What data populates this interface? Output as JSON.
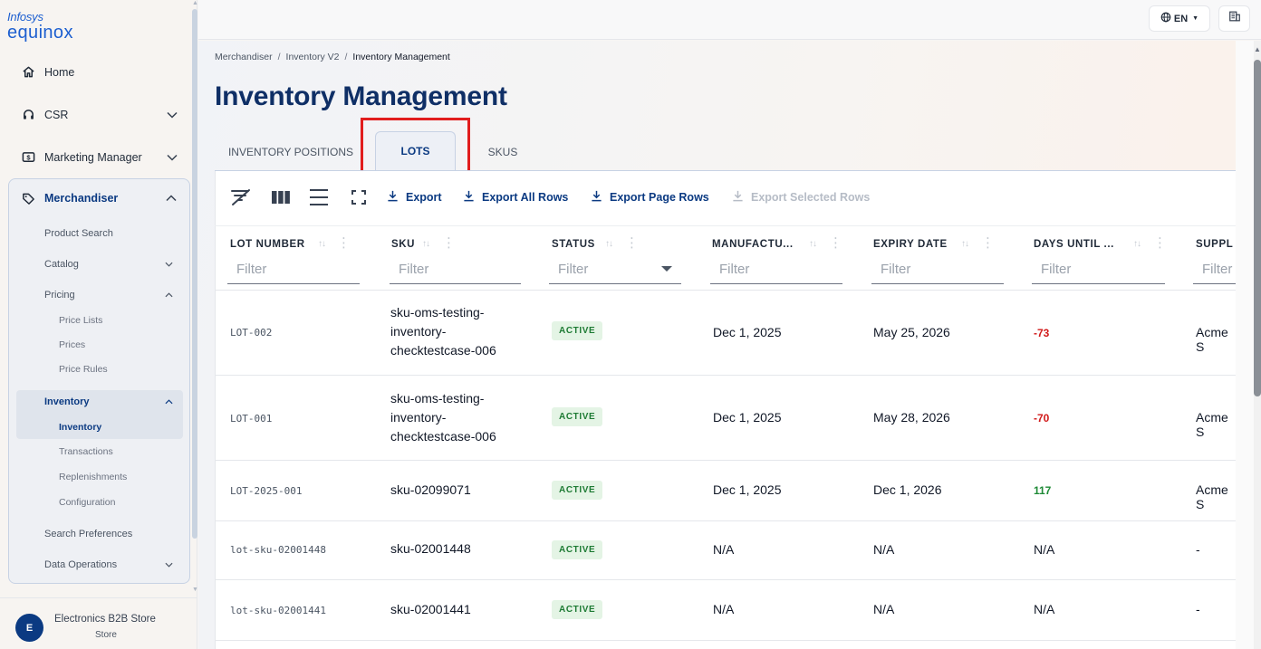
{
  "brand": {
    "line1": "Infosys",
    "line2": "equinox"
  },
  "sidebar": {
    "top_items": [
      {
        "label": "Home"
      },
      {
        "label": "CSR"
      },
      {
        "label": "Marketing Manager"
      }
    ],
    "merchandiser": {
      "label": "Merchandiser",
      "items": {
        "product_search": "Product Search",
        "catalog": "Catalog",
        "pricing": "Pricing",
        "price_lists": "Price Lists",
        "prices": "Prices",
        "price_rules": "Price Rules",
        "inventory": "Inventory",
        "inventory_sub": "Inventory",
        "transactions": "Transactions",
        "replenishments": "Replenishments",
        "configuration": "Configuration",
        "search_preferences": "Search Preferences",
        "data_operations": "Data Operations"
      }
    },
    "store": {
      "avatar": "E",
      "name": "Electronics B2B Store",
      "type": "Store"
    }
  },
  "topbar": {
    "language": "EN"
  },
  "breadcrumb": [
    "Merchandiser",
    "Inventory V2",
    "Inventory Management"
  ],
  "page_title": "Inventory Management",
  "tabs": [
    {
      "label": "INVENTORY POSITIONS"
    },
    {
      "label": "LOTS",
      "active": true
    },
    {
      "label": "SKUS"
    }
  ],
  "toolbar": {
    "export": "Export",
    "export_all": "Export All Rows",
    "export_page": "Export Page Rows",
    "export_selected": "Export Selected Rows"
  },
  "columns": [
    {
      "label": "LOT NUMBER",
      "filter": "Filter"
    },
    {
      "label": "SKU",
      "filter": "Filter"
    },
    {
      "label": "STATUS",
      "filter": "Filter"
    },
    {
      "label": "MANUFACTU...",
      "filter": "Filter"
    },
    {
      "label": "EXPIRY DATE",
      "filter": "Filter"
    },
    {
      "label": "DAYS UNTIL ...",
      "filter": "Filter"
    },
    {
      "label": "SUPPL",
      "filter": "Filter"
    }
  ],
  "rows": [
    {
      "lot": "LOT-002",
      "sku_lines": [
        "sku-oms-testing-",
        "inventory-",
        "checktestcase-006"
      ],
      "status": "ACTIVE",
      "manufactured": "Dec 1, 2025",
      "expiry": "May 25, 2026",
      "days": "-73",
      "days_color": "#d11a1a",
      "supplier": "Acme S"
    },
    {
      "lot": "LOT-001",
      "sku_lines": [
        "sku-oms-testing-",
        "inventory-",
        "checktestcase-006"
      ],
      "status": "ACTIVE",
      "manufactured": "Dec 1, 2025",
      "expiry": "May 28, 2026",
      "days": "-70",
      "days_color": "#d11a1a",
      "supplier": "Acme S"
    },
    {
      "lot": "LOT-2025-001",
      "sku_lines": [
        "sku-02099071"
      ],
      "status": "ACTIVE",
      "manufactured": "Dec 1, 2025",
      "expiry": "Dec 1, 2026",
      "days": "117",
      "days_color": "#1e8a36",
      "supplier": "Acme S"
    },
    {
      "lot": "lot-sku-02001448",
      "sku_lines": [
        "sku-02001448"
      ],
      "status": "ACTIVE",
      "manufactured": "N/A",
      "expiry": "N/A",
      "days": "N/A",
      "days_color": "#111827",
      "supplier": "-"
    },
    {
      "lot": "lot-sku-02001441",
      "sku_lines": [
        "sku-02001441"
      ],
      "status": "ACTIVE",
      "manufactured": "N/A",
      "expiry": "N/A",
      "days": "N/A",
      "days_color": "#111827",
      "supplier": "-"
    }
  ]
}
